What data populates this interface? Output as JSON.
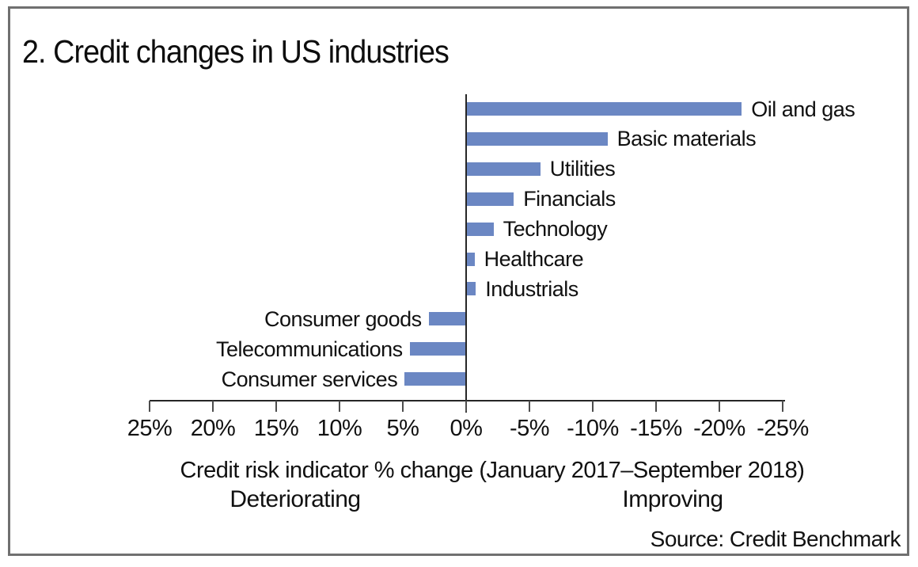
{
  "title": "2. Credit changes in US industries",
  "chart_data": {
    "type": "bar",
    "orientation": "horizontal",
    "title": "2. Credit changes in US industries",
    "categories": [
      "Oil and gas",
      "Basic materials",
      "Utilities",
      "Financials",
      "Technology",
      "Healthcare",
      "Industrials",
      "Consumer goods",
      "Telecommunications",
      "Consumer services"
    ],
    "values": [
      -21.7,
      -11.1,
      -5.8,
      -3.7,
      -2.1,
      -0.6,
      -0.7,
      2.9,
      4.4,
      4.8
    ],
    "unit": "%",
    "value_note": "negative = improving (bar extends right), positive = deteriorating (bar extends left)",
    "xlabel": "Credit risk indicator % change (January 2017–September 2018)",
    "x_axis": {
      "reversed": true,
      "min": -25,
      "max": 25,
      "tick_values": [
        25,
        20,
        15,
        10,
        5,
        0,
        -5,
        -10,
        -15,
        -20,
        -25
      ],
      "tick_labels": [
        "25%",
        "20%",
        "15%",
        "10%",
        "5%",
        "0%",
        "-5%",
        "-10%",
        "-15%",
        "-20%",
        "-25%"
      ]
    },
    "direction_labels": {
      "left": "Deteriorating",
      "right": "Improving"
    },
    "bar_color": "#6B87C3",
    "grid": false,
    "legend": false
  },
  "source": "Source: Credit Benchmark",
  "colors": {
    "bar": "#6B87C3",
    "axis_line": "#262626",
    "tick": "#4d4d4d",
    "frame_border": "#707070",
    "text": "#111111",
    "background": "#ffffff"
  }
}
